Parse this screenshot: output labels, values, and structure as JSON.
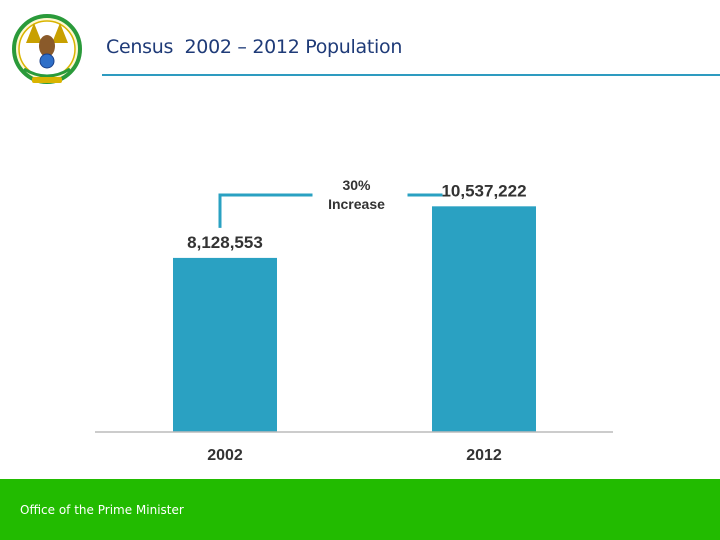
{
  "header": {
    "title": "Census  2002 – 2012 Population",
    "emblem_icon": "rwanda-coat-of-arms-icon"
  },
  "chart_data": {
    "type": "bar",
    "categories": [
      "2002",
      "2012"
    ],
    "values": [
      8128553,
      10537222
    ],
    "value_labels": [
      "8,128,553",
      "10,537,222"
    ],
    "annotation": {
      "line1": "30%",
      "line2": "Increase"
    },
    "ylim": [
      0,
      12700000
    ],
    "grid": false,
    "bar_color": "#2aa1c2",
    "connector_color": "#2aa1c2"
  },
  "footer": {
    "text": "Office of the Prime Minister",
    "color": "#22bb00"
  }
}
